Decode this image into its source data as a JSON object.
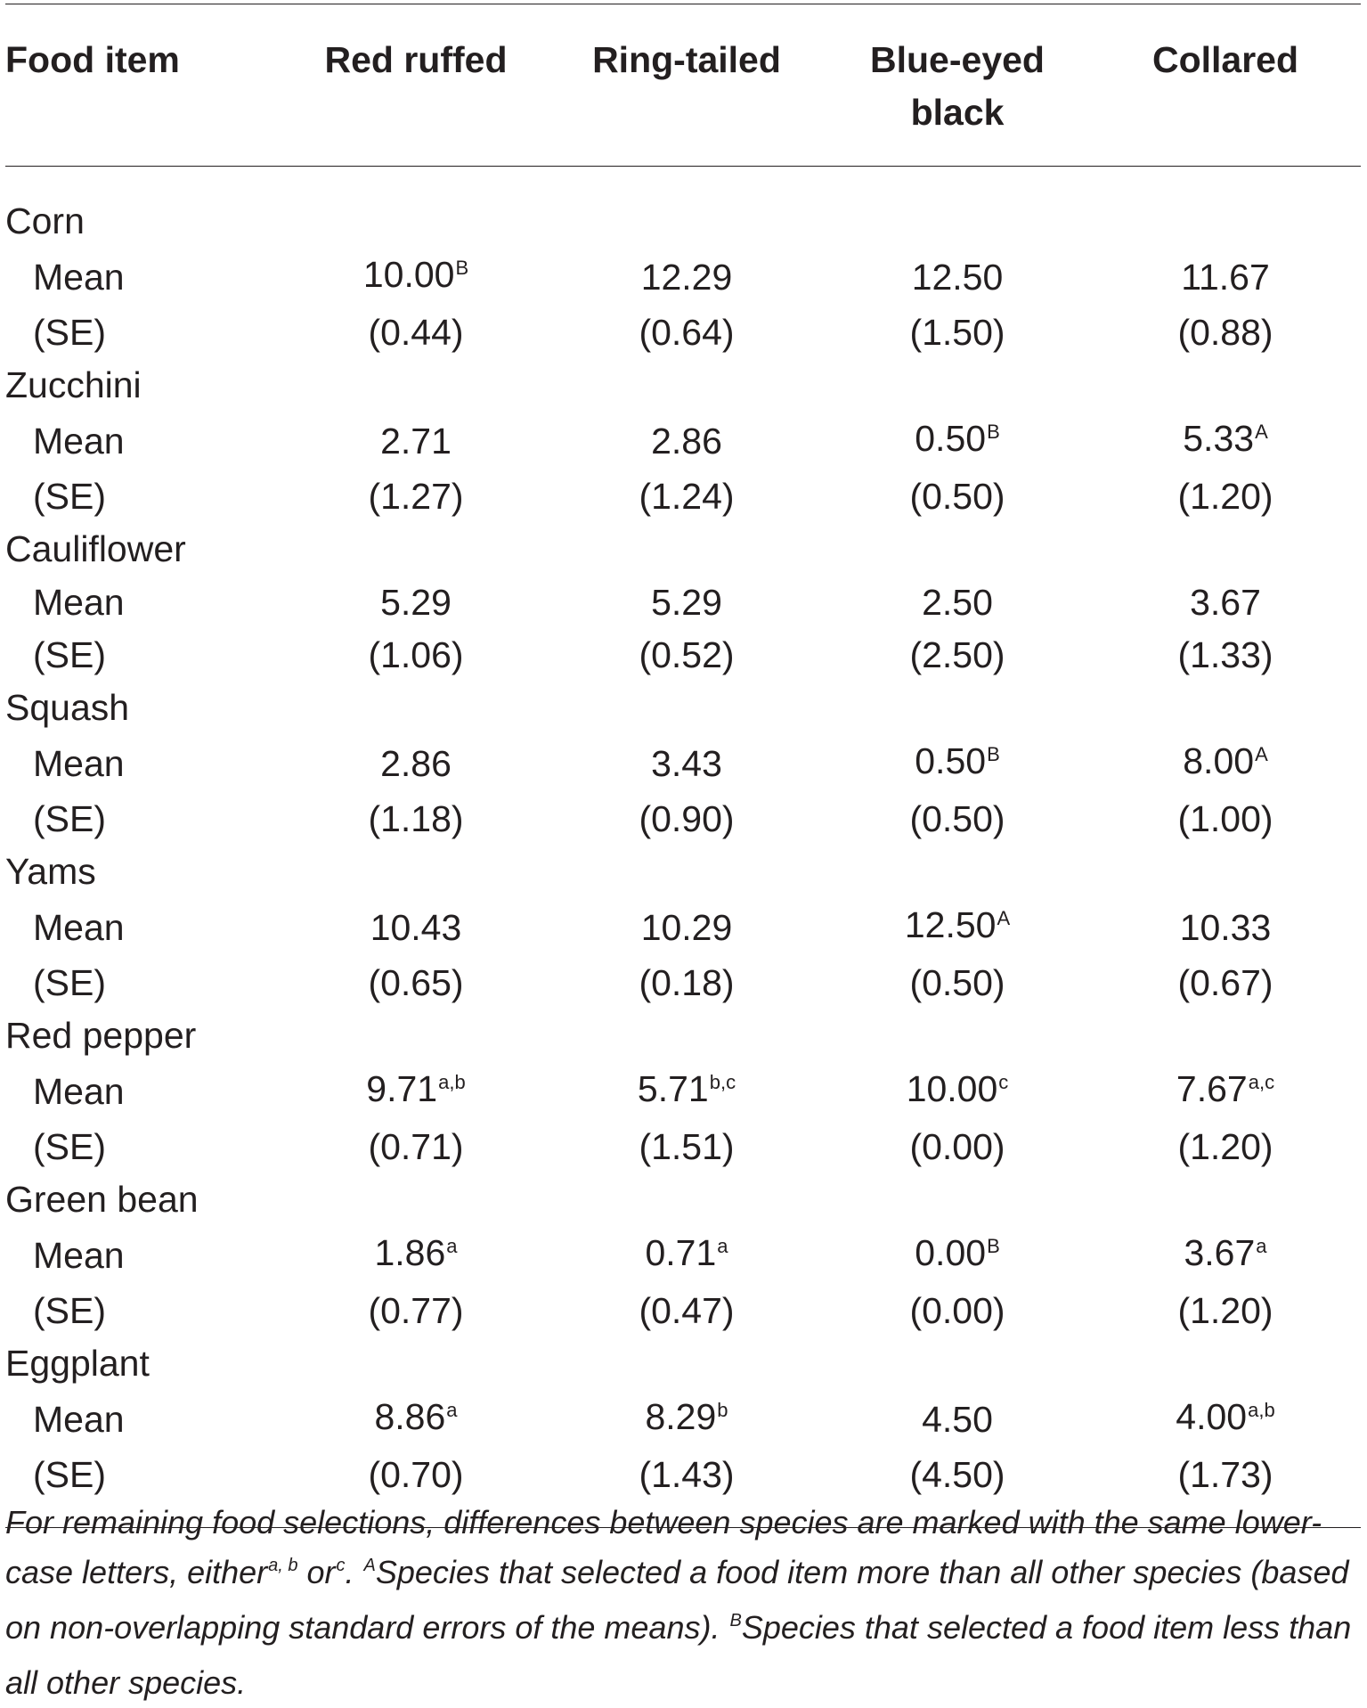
{
  "table": {
    "header": {
      "food": "Food item",
      "red_ruffed": "Red ruffed",
      "ring_tailed": "Ring-tailed",
      "blue_eyed_1": "Blue-eyed",
      "blue_eyed_2": "black",
      "collared": "Collared"
    },
    "mean_label": "Mean",
    "se_label": "(SE)",
    "rows": [
      {
        "name": "Corn",
        "mean": [
          {
            "v": "10.00",
            "s": "B"
          },
          {
            "v": "12.29",
            "s": ""
          },
          {
            "v": "12.50",
            "s": ""
          },
          {
            "v": "11.67",
            "s": ""
          }
        ],
        "se": [
          "(0.44)",
          "(0.64)",
          "(1.50)",
          "(0.88)"
        ]
      },
      {
        "name": "Zucchini",
        "mean": [
          {
            "v": "2.71",
            "s": ""
          },
          {
            "v": "2.86",
            "s": ""
          },
          {
            "v": "0.50",
            "s": "B"
          },
          {
            "v": "5.33",
            "s": "A"
          }
        ],
        "se": [
          "(1.27)",
          "(1.24)",
          "(0.50)",
          "(1.20)"
        ]
      },
      {
        "name": "Cauliflower",
        "mean": [
          {
            "v": "5.29",
            "s": ""
          },
          {
            "v": "5.29",
            "s": ""
          },
          {
            "v": "2.50",
            "s": ""
          },
          {
            "v": "3.67",
            "s": ""
          }
        ],
        "se": [
          "(1.06)",
          "(0.52)",
          "(2.50)",
          "(1.33)"
        ]
      },
      {
        "name": "Squash",
        "mean": [
          {
            "v": "2.86",
            "s": ""
          },
          {
            "v": "3.43",
            "s": ""
          },
          {
            "v": "0.50",
            "s": "B"
          },
          {
            "v": "8.00",
            "s": "A"
          }
        ],
        "se": [
          "(1.18)",
          "(0.90)",
          "(0.50)",
          "(1.00)"
        ]
      },
      {
        "name": "Yams",
        "mean": [
          {
            "v": "10.43",
            "s": ""
          },
          {
            "v": "10.29",
            "s": ""
          },
          {
            "v": "12.50",
            "s": "A"
          },
          {
            "v": "10.33",
            "s": ""
          }
        ],
        "se": [
          "(0.65)",
          "(0.18)",
          "(0.50)",
          "(0.67)"
        ]
      },
      {
        "name": "Red pepper",
        "mean": [
          {
            "v": "9.71",
            "s": "a,b"
          },
          {
            "v": "5.71",
            "s": "b,c"
          },
          {
            "v": "10.00",
            "s": "c"
          },
          {
            "v": "7.67",
            "s": "a,c"
          }
        ],
        "se": [
          "(0.71)",
          "(1.51)",
          "(0.00)",
          "(1.20)"
        ]
      },
      {
        "name": "Green bean",
        "mean": [
          {
            "v": "1.86",
            "s": "a"
          },
          {
            "v": "0.71",
            "s": "a"
          },
          {
            "v": "0.00",
            "s": "B"
          },
          {
            "v": "3.67",
            "s": "a"
          }
        ],
        "se": [
          "(0.77)",
          "(0.47)",
          "(0.00)",
          "(1.20)"
        ]
      },
      {
        "name": "Eggplant",
        "mean": [
          {
            "v": "8.86",
            "s": "a"
          },
          {
            "v": "8.29",
            "s": "b"
          },
          {
            "v": "4.50",
            "s": ""
          },
          {
            "v": "4.00",
            "s": "a,b"
          }
        ],
        "se": [
          "(0.70)",
          "(1.43)",
          "(4.50)",
          "(1.73)"
        ]
      }
    ]
  },
  "footnote": {
    "p1": "For remaining food selections, differences between species are marked with the same lower-case letters, either",
    "s1": "a, b",
    "p2": " or",
    "s2": "c",
    "p3": ". ",
    "s3": "A",
    "p4": "Species that selected a food item more than all other species (based on non-overlapping standard errors of the means). ",
    "s4": "B",
    "p5": "Species that selected a food item less than all other species."
  }
}
